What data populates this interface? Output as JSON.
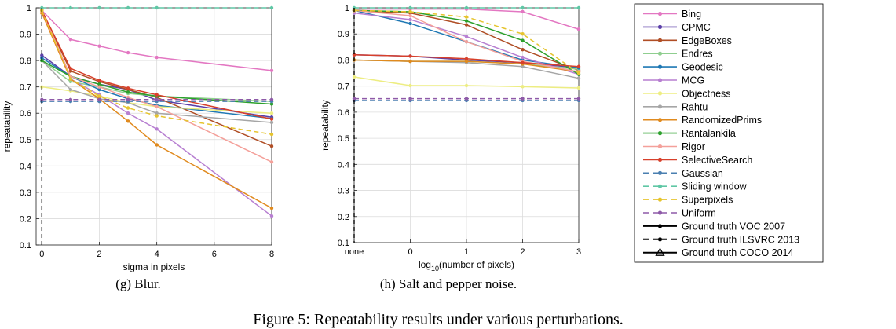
{
  "chart_data": [
    {
      "type": "line",
      "caption": "(g) Blur.",
      "xlabel": "sigma in pixels",
      "ylabel": "repeatability",
      "x": [
        0,
        1,
        2,
        3,
        4,
        8
      ],
      "xlim": [
        -0.2,
        8
      ],
      "xticks": [
        0,
        2,
        4,
        6,
        8
      ],
      "xtick_labels": [
        "0",
        "2",
        "4",
        "6",
        "8"
      ],
      "ylim": [
        0.1,
        1.0
      ],
      "yticks": [
        0.1,
        0.2,
        0.3,
        0.4,
        0.5,
        0.6,
        0.7,
        0.8,
        0.9,
        1.0
      ],
      "ytick_labels": [
        "0.1",
        "0.2",
        "0.3",
        "0.4",
        "0.5",
        "0.6",
        "0.7",
        "0.8",
        "0.9",
        "1"
      ],
      "grid": true,
      "series": [
        {
          "name": "Bing",
          "values": [
            0.99,
            0.88,
            0.855,
            0.83,
            0.812,
            0.762
          ]
        },
        {
          "name": "CPMC",
          "values": [
            0.82,
            0.74,
            0.71,
            0.69,
            0.65,
            0.585
          ]
        },
        {
          "name": "EdgeBoxes",
          "values": [
            0.99,
            0.76,
            0.72,
            0.69,
            0.66,
            0.475
          ]
        },
        {
          "name": "Endres",
          "values": [
            0.8,
            0.72,
            0.7,
            0.675,
            0.665,
            0.645
          ]
        },
        {
          "name": "Geodesic",
          "values": [
            0.81,
            0.74,
            0.69,
            0.655,
            0.63,
            0.58
          ]
        },
        {
          "name": "MCG",
          "values": [
            0.99,
            0.73,
            0.67,
            0.6,
            0.54,
            0.21
          ]
        },
        {
          "name": "Objectness",
          "values": [
            0.7,
            0.685,
            0.665,
            0.64,
            0.625,
            0.6
          ]
        },
        {
          "name": "Rahtu",
          "values": [
            0.8,
            0.69,
            0.655,
            0.64,
            0.6,
            0.565
          ]
        },
        {
          "name": "RandomizedPrims",
          "values": [
            0.98,
            0.73,
            0.655,
            0.57,
            0.48,
            0.24
          ]
        },
        {
          "name": "Rantalankila",
          "values": [
            0.8,
            0.74,
            0.71,
            0.68,
            0.665,
            0.635
          ]
        },
        {
          "name": "Rigor",
          "values": [
            0.99,
            0.74,
            0.7,
            0.66,
            0.625,
            0.415
          ]
        },
        {
          "name": "SelectiveSearch",
          "values": [
            0.99,
            0.77,
            0.725,
            0.695,
            0.67,
            0.578
          ]
        },
        {
          "name": "Gaussian",
          "values": [
            0.645,
            0.645,
            0.645,
            0.645,
            0.645,
            0.645
          ]
        },
        {
          "name": "Sliding window",
          "values": [
            1.0,
            1.0,
            1.0,
            1.0,
            1.0,
            1.0
          ]
        },
        {
          "name": "Superpixels",
          "values": [
            0.99,
            0.73,
            0.665,
            0.62,
            0.59,
            0.52
          ]
        },
        {
          "name": "Uniform",
          "values": [
            0.652,
            0.652,
            0.652,
            0.652,
            0.652,
            0.652
          ]
        }
      ]
    },
    {
      "type": "line",
      "caption": "(h) Salt and pepper noise.",
      "xlabel": "log",
      "xlabel_sub": "10",
      "xlabel_rest": "(number of pixels)",
      "ylabel": "repeatability",
      "x": [
        -1,
        0,
        1,
        2,
        3
      ],
      "xlim": [
        -1,
        3
      ],
      "xticks": [
        -1,
        0,
        1,
        2,
        3
      ],
      "xtick_labels": [
        "none",
        "0",
        "1",
        "2",
        "3"
      ],
      "ylim": [
        0.1,
        1.0
      ],
      "yticks": [
        0.1,
        0.2,
        0.3,
        0.4,
        0.5,
        0.6,
        0.7,
        0.8,
        0.9,
        1.0
      ],
      "ytick_labels": [
        "0.1",
        "0.2",
        "0.3",
        "0.4",
        "0.5",
        "0.6",
        "0.7",
        "0.8",
        "0.9",
        "1"
      ],
      "grid": true,
      "series": [
        {
          "name": "Bing",
          "values": [
            0.995,
            0.995,
            0.995,
            0.985,
            0.918
          ]
        },
        {
          "name": "CPMC",
          "values": [
            0.82,
            0.815,
            0.8,
            0.79,
            0.77
          ]
        },
        {
          "name": "EdgeBoxes",
          "values": [
            0.99,
            0.98,
            0.935,
            0.84,
            0.76
          ]
        },
        {
          "name": "Endres",
          "values": [
            0.8,
            0.795,
            0.795,
            0.785,
            0.765
          ]
        },
        {
          "name": "Geodesic",
          "values": [
            0.99,
            0.94,
            0.87,
            0.8,
            0.77
          ]
        },
        {
          "name": "MCG",
          "values": [
            0.98,
            0.955,
            0.89,
            0.81,
            0.745
          ]
        },
        {
          "name": "Objectness",
          "values": [
            0.735,
            0.702,
            0.702,
            0.698,
            0.693
          ]
        },
        {
          "name": "Rahtu",
          "values": [
            0.8,
            0.795,
            0.79,
            0.775,
            0.73
          ]
        },
        {
          "name": "RandomizedPrims",
          "values": [
            0.8,
            0.795,
            0.795,
            0.785,
            0.755
          ]
        },
        {
          "name": "Rantalankila",
          "values": [
            0.99,
            0.985,
            0.95,
            0.875,
            0.745
          ]
        },
        {
          "name": "Rigor",
          "values": [
            0.99,
            0.97,
            0.87,
            0.795,
            0.755
          ]
        },
        {
          "name": "SelectiveSearch",
          "values": [
            0.82,
            0.815,
            0.805,
            0.79,
            0.775
          ]
        },
        {
          "name": "Gaussian",
          "values": [
            0.645,
            0.645,
            0.645,
            0.645,
            0.645
          ]
        },
        {
          "name": "Sliding window",
          "values": [
            1.0,
            1.0,
            1.0,
            1.0,
            1.0
          ]
        },
        {
          "name": "Superpixels",
          "values": [
            0.99,
            0.985,
            0.965,
            0.9,
            0.75
          ]
        },
        {
          "name": "Uniform",
          "values": [
            0.652,
            0.652,
            0.652,
            0.652,
            0.652
          ]
        }
      ]
    }
  ],
  "legend": {
    "placement": "right",
    "entries": [
      {
        "name": "Bing",
        "color": "#e377c2",
        "dash": "solid",
        "marker": "dot"
      },
      {
        "name": "CPMC",
        "color": "#5b3fa8",
        "dash": "solid",
        "marker": "dot"
      },
      {
        "name": "EdgeBoxes",
        "color": "#b04e25",
        "dash": "solid",
        "marker": "dot"
      },
      {
        "name": "Endres",
        "color": "#8fce8f",
        "dash": "solid",
        "marker": "dot"
      },
      {
        "name": "Geodesic",
        "color": "#1f78b4",
        "dash": "solid",
        "marker": "dot"
      },
      {
        "name": "MCG",
        "color": "#b77fd1",
        "dash": "solid",
        "marker": "dot"
      },
      {
        "name": "Objectness",
        "color": "#eded82",
        "dash": "solid",
        "marker": "dot"
      },
      {
        "name": "Rahtu",
        "color": "#a6a6a6",
        "dash": "solid",
        "marker": "dot"
      },
      {
        "name": "RandomizedPrims",
        "color": "#e08a1e",
        "dash": "solid",
        "marker": "dot"
      },
      {
        "name": "Rantalankila",
        "color": "#2ca02c",
        "dash": "solid",
        "marker": "dot"
      },
      {
        "name": "Rigor",
        "color": "#f4a09a",
        "dash": "solid",
        "marker": "dot"
      },
      {
        "name": "SelectiveSearch",
        "color": "#d7402b",
        "dash": "solid",
        "marker": "dot"
      },
      {
        "name": "Gaussian",
        "color": "#4a7fb0",
        "dash": "dashed",
        "marker": "dot"
      },
      {
        "name": "Sliding window",
        "color": "#5fc7a5",
        "dash": "dashed",
        "marker": "dot"
      },
      {
        "name": "Superpixels",
        "color": "#e6c42e",
        "dash": "dashed",
        "marker": "dot"
      },
      {
        "name": "Uniform",
        "color": "#8e5aa8",
        "dash": "dashed",
        "marker": "dot"
      },
      {
        "name": "Ground truth VOC 2007",
        "color": "#000000",
        "dash": "solid",
        "marker": "dot"
      },
      {
        "name": "Ground truth ILSVRC 2013",
        "color": "#000000",
        "dash": "dashed",
        "marker": "dot"
      },
      {
        "name": "Ground truth COCO 2014",
        "color": "#000000",
        "dash": "solid",
        "marker": "triangle"
      }
    ]
  },
  "figure_caption": "Figure 5: Repeatability results under various perturbations."
}
